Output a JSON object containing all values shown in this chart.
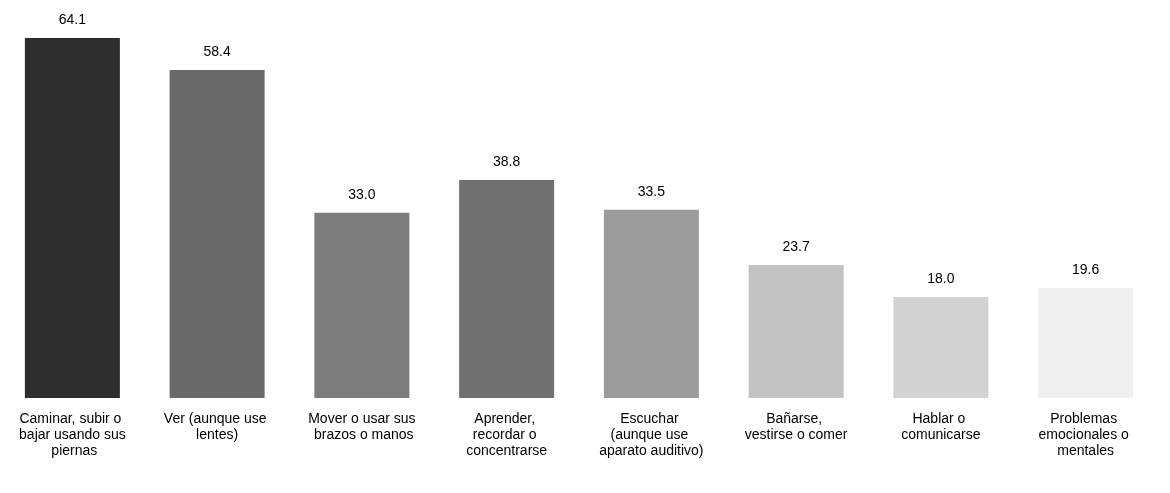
{
  "chart_data": {
    "type": "bar",
    "categories": [
      "Caminar, subir o bajar usando sus piernas",
      "Ver (aunque use lentes)",
      "Mover o usar sus brazos o manos",
      "Aprender, recordar o concentrarse",
      "Escuchar (aunque use aparato auditivo)",
      "Bañarse, vestirse o comer",
      "Hablar o comunicarse",
      "Problemas emocionales o mentales"
    ],
    "values": [
      64.1,
      58.4,
      33.0,
      38.8,
      33.5,
      23.7,
      18.0,
      19.6
    ],
    "colors": [
      "#2e2e2e",
      "#6a6a6a",
      "#7c7c7c",
      "#707070",
      "#9c9c9c",
      "#c2c2c2",
      "#d2d2d2",
      "#f0f0f0"
    ],
    "value_labels": [
      "64.1",
      "58.4",
      "33.0",
      "38.8",
      "33.5",
      "23.7",
      "18.0",
      "19.6"
    ]
  }
}
